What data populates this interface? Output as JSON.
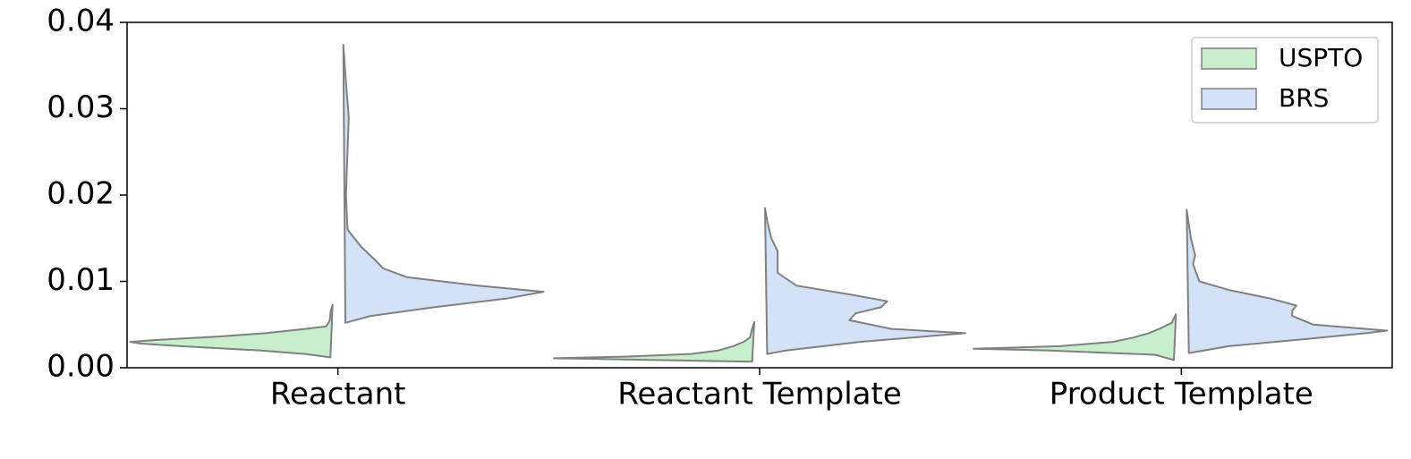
{
  "chart_data": {
    "type": "violin",
    "categories": [
      "Reactant",
      "Reactant Template",
      "Product Template"
    ],
    "ylim": [
      0,
      0.04
    ],
    "yticks": [
      {
        "value": 0,
        "label": "0.00"
      },
      0.01,
      0.02,
      0.03,
      0.04
    ],
    "legend": "upper right",
    "series": [
      {
        "name": "USPTO",
        "color": "#c8efcc",
        "side": "left",
        "violins": [
          {
            "y": [
              0.0012,
              0.0016,
              0.002,
              0.0025,
              0.0028,
              0.003,
              0.0032,
              0.0036,
              0.004,
              0.0045,
              0.0048,
              0.0055,
              0.0065,
              0.0073
            ],
            "width": [
              0.01,
              0.13,
              0.34,
              0.72,
              0.91,
              0.96,
              0.85,
              0.55,
              0.32,
              0.13,
              0.03,
              0.013,
              0.009,
              0
            ]
          },
          {
            "y": [
              0.0007,
              0.0009,
              0.0011,
              0.0013,
              0.0016,
              0.002,
              0.0025,
              0.003,
              0.0035,
              0.0045,
              0.0053
            ],
            "width": [
              0.01,
              0.5,
              0.95,
              0.6,
              0.3,
              0.17,
              0.1,
              0.05,
              0.02,
              0.01,
              0
            ]
          },
          {
            "y": [
              0.0009,
              0.0015,
              0.002,
              0.0022,
              0.0025,
              0.003,
              0.0035,
              0.004,
              0.0045,
              0.0052,
              0.0062
            ],
            "width": [
              0.01,
              0.1,
              0.6,
              0.96,
              0.55,
              0.3,
              0.2,
              0.13,
              0.08,
              0.02,
              0
            ]
          }
        ]
      },
      {
        "name": "BRS",
        "color": "#d3e2f6",
        "side": "right",
        "violins": [
          {
            "y": [
              0.0052,
              0.006,
              0.007,
              0.008,
              0.0088,
              0.0095,
              0.0105,
              0.0115,
              0.0125,
              0.014,
              0.016,
              0.02,
              0.025,
              0.029,
              0.033,
              0.0374
            ],
            "width": [
              0.01,
              0.13,
              0.43,
              0.77,
              0.95,
              0.64,
              0.3,
              0.19,
              0.15,
              0.085,
              0.02,
              0.013,
              0.02,
              0.026,
              0.013,
              0
            ]
          },
          {
            "y": [
              0.0016,
              0.002,
              0.003,
              0.0037,
              0.004,
              0.0045,
              0.0055,
              0.0063,
              0.007,
              0.0077,
              0.0085,
              0.0095,
              0.011,
              0.0135,
              0.015,
              0.017,
              0.0185
            ],
            "width": [
              0.01,
              0.1,
              0.45,
              0.8,
              0.95,
              0.6,
              0.4,
              0.43,
              0.55,
              0.58,
              0.4,
              0.15,
              0.06,
              0.06,
              0.03,
              0.01,
              0
            ]
          },
          {
            "y": [
              0.0017,
              0.0025,
              0.0033,
              0.004,
              0.0043,
              0.005,
              0.006,
              0.0066,
              0.0072,
              0.008,
              0.009,
              0.01,
              0.012,
              0.013,
              0.015,
              0.0183
            ],
            "width": [
              0.01,
              0.2,
              0.55,
              0.85,
              0.95,
              0.6,
              0.5,
              0.5,
              0.52,
              0.4,
              0.2,
              0.06,
              0.03,
              0.04,
              0.02,
              0
            ]
          }
        ]
      }
    ]
  }
}
